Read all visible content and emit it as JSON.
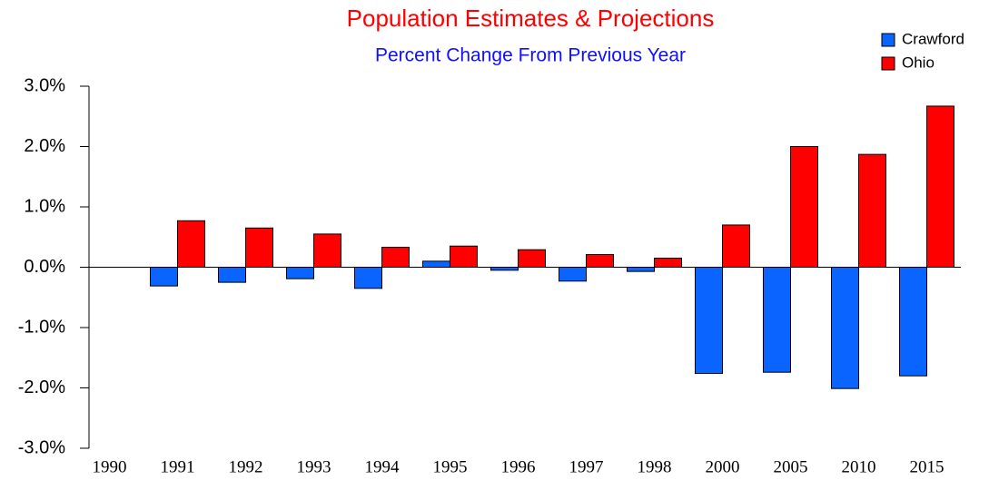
{
  "chart_data": {
    "type": "bar",
    "title": "Population Estimates & Projections",
    "subtitle": "Percent Change From Previous Year",
    "categories": [
      "1990",
      "1991",
      "1992",
      "1993",
      "1994",
      "1995",
      "1996",
      "1997",
      "1998",
      "2000",
      "2005",
      "2010",
      "2015"
    ],
    "series": [
      {
        "name": "Crawford",
        "color": "#0a64ff",
        "values": [
          null,
          -0.31,
          -0.25,
          -0.19,
          -0.35,
          0.1,
          -0.05,
          -0.23,
          -0.07,
          -1.76,
          -1.74,
          -2.01,
          -1.8
        ]
      },
      {
        "name": "Ohio",
        "color": "#ff0000",
        "values": [
          null,
          0.77,
          0.65,
          0.55,
          0.33,
          0.35,
          0.29,
          0.21,
          0.15,
          0.7,
          2.0,
          1.87,
          2.67
        ]
      }
    ],
    "ylim": [
      -3,
      3
    ],
    "yticks": [
      {
        "value": -3,
        "label": "-3.0%"
      },
      {
        "value": -2,
        "label": "-2.0%"
      },
      {
        "value": -1,
        "label": "-1.0%"
      },
      {
        "value": 0,
        "label": "0.0%"
      },
      {
        "value": 1,
        "label": "1.0%"
      },
      {
        "value": 2,
        "label": "2.0%"
      },
      {
        "value": 3,
        "label": "3.0%"
      }
    ],
    "legend": "top-right"
  }
}
